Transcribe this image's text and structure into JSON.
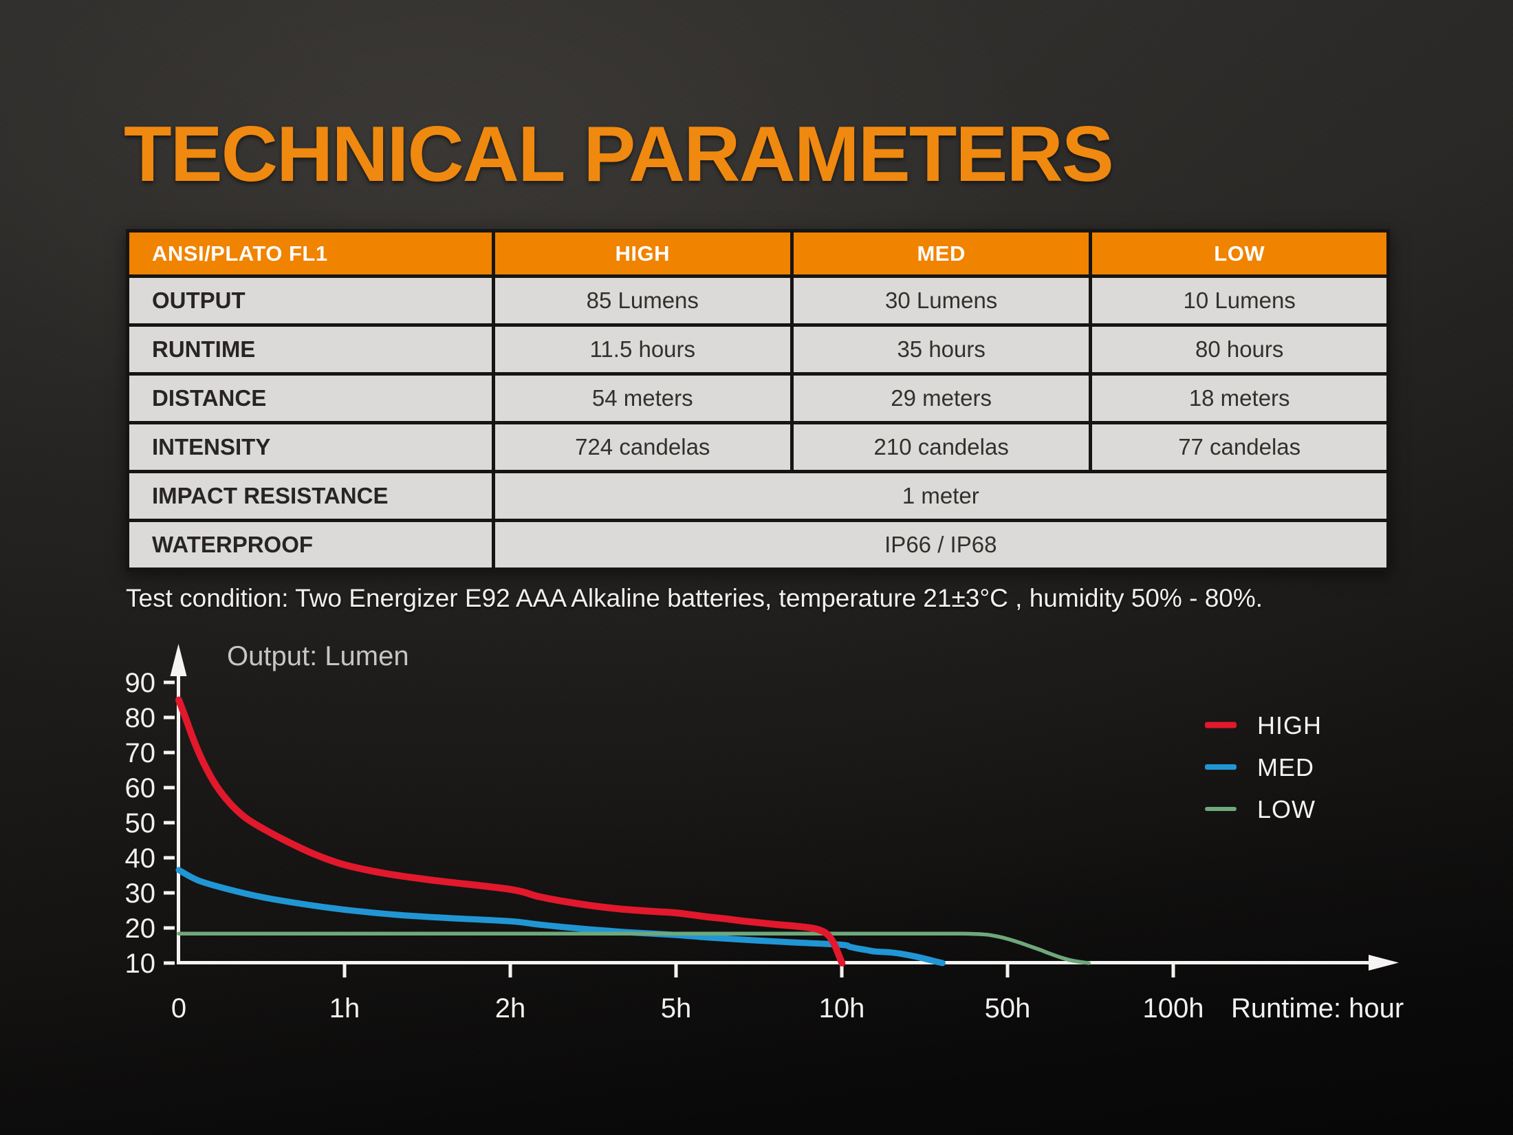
{
  "page": {
    "title": "TECHNICAL PARAMETERS"
  },
  "table": {
    "header": {
      "col0": "ANSI/PLATO FL1",
      "col1": "HIGH",
      "col2": "MED",
      "col3": "LOW"
    },
    "rows": [
      {
        "label": "OUTPUT",
        "values": [
          "85 Lumens",
          "30 Lumens",
          "10 Lumens"
        ]
      },
      {
        "label": "RUNTIME",
        "values": [
          "11.5 hours",
          "35 hours",
          "80 hours"
        ]
      },
      {
        "label": "DISTANCE",
        "values": [
          "54 meters",
          "29 meters",
          "18 meters"
        ]
      },
      {
        "label": "INTENSITY",
        "values": [
          "724 candelas",
          "210 candelas",
          "77 candelas"
        ]
      },
      {
        "label": "IMPACT RESISTANCE",
        "values": [
          "1 meter"
        ]
      },
      {
        "label": "WATERPROOF",
        "values": [
          "IP66 / IP68"
        ]
      }
    ]
  },
  "test_condition": "Test condition: Two Energizer E92 AAA Alkaline batteries, temperature 21±3°C , humidity 50% - 80%.",
  "chart_data": {
    "type": "line",
    "title": "Output: Lumen",
    "xlabel": "Runtime: hour",
    "x_axis_note": "segmented axis, equal spacing between tick hours",
    "x_tick_labels": [
      "0",
      "1h",
      "2h",
      "5h",
      "10h",
      "50h",
      "100h"
    ],
    "x_tick_hours": [
      0,
      1,
      2,
      5,
      10,
      50,
      100
    ],
    "y_ticks": [
      90,
      80,
      70,
      60,
      50,
      40,
      30,
      20,
      10
    ],
    "ylim": [
      10,
      95
    ],
    "grid": false,
    "legend_position": "right",
    "series": [
      {
        "name": "HIGH",
        "color": "#E2182C",
        "points": [
          [
            0,
            85
          ],
          [
            0.04,
            80
          ],
          [
            0.09,
            73.5
          ],
          [
            0.15,
            67
          ],
          [
            0.22,
            61
          ],
          [
            0.3,
            56
          ],
          [
            0.4,
            51.5
          ],
          [
            0.52,
            48
          ],
          [
            0.66,
            44.5
          ],
          [
            0.82,
            41
          ],
          [
            1,
            38
          ],
          [
            1.25,
            35.5
          ],
          [
            1.55,
            33.5
          ],
          [
            2,
            31
          ],
          [
            2.5,
            29
          ],
          [
            3,
            27.5
          ],
          [
            3.5,
            26.3
          ],
          [
            4,
            25.4
          ],
          [
            4.5,
            24.8
          ],
          [
            5,
            24.3
          ],
          [
            5.5,
            23.7
          ],
          [
            6,
            23.1
          ],
          [
            6.5,
            22.6
          ],
          [
            7,
            22
          ],
          [
            7.5,
            21.5
          ],
          [
            8,
            21
          ],
          [
            8.5,
            20.6
          ],
          [
            9,
            20.1
          ],
          [
            9.3,
            19.5
          ],
          [
            9.55,
            18.3
          ],
          [
            9.75,
            15.8
          ],
          [
            9.9,
            12.5
          ],
          [
            10.05,
            10
          ]
        ]
      },
      {
        "name": "MED",
        "color": "#2196D4",
        "points": [
          [
            0,
            36.5
          ],
          [
            0.12,
            33.5
          ],
          [
            0.3,
            31
          ],
          [
            0.5,
            28.8
          ],
          [
            0.75,
            26.8
          ],
          [
            1,
            25.2
          ],
          [
            1.3,
            23.8
          ],
          [
            1.6,
            22.9
          ],
          [
            2,
            21.9
          ],
          [
            2.5,
            21
          ],
          [
            3,
            20.2
          ],
          [
            3.6,
            19.4
          ],
          [
            4.2,
            18.7
          ],
          [
            5,
            18
          ],
          [
            5.8,
            17.4
          ],
          [
            6.6,
            16.9
          ],
          [
            7.5,
            16.4
          ],
          [
            8.7,
            15.8
          ],
          [
            10,
            15.2
          ],
          [
            12,
            14.6
          ],
          [
            14,
            14.1
          ],
          [
            16,
            13.7
          ],
          [
            18,
            13.3
          ],
          [
            22,
            13
          ],
          [
            25,
            12.5
          ],
          [
            28,
            11.8
          ],
          [
            30.5,
            11.1
          ],
          [
            32.5,
            10.5
          ],
          [
            34.3,
            10
          ]
        ]
      },
      {
        "name": "LOW",
        "color": "#6FA87B",
        "points": [
          [
            0,
            18.4
          ],
          [
            10,
            18.4
          ],
          [
            20,
            18.4
          ],
          [
            30,
            18.4
          ],
          [
            38,
            18.4
          ],
          [
            42,
            18.3
          ],
          [
            45,
            18.1
          ],
          [
            47,
            17.7
          ],
          [
            49,
            17.2
          ],
          [
            51,
            16.6
          ],
          [
            54,
            15.7
          ],
          [
            57,
            14.7
          ],
          [
            60,
            13.7
          ],
          [
            63,
            12.6
          ],
          [
            66,
            11.6
          ],
          [
            69,
            10.8
          ],
          [
            72,
            10.3
          ],
          [
            74.5,
            10
          ]
        ]
      }
    ]
  },
  "colors": {
    "accent_orange": "#F08300",
    "title_orange": "#F0890F",
    "table_cell_gray": "#DBDAD8",
    "axis_white": "#F5F4F2",
    "chart_title_gray": "#C8C6C3",
    "high": "#E2182C",
    "med": "#2196D4",
    "low": "#6FA87B"
  }
}
